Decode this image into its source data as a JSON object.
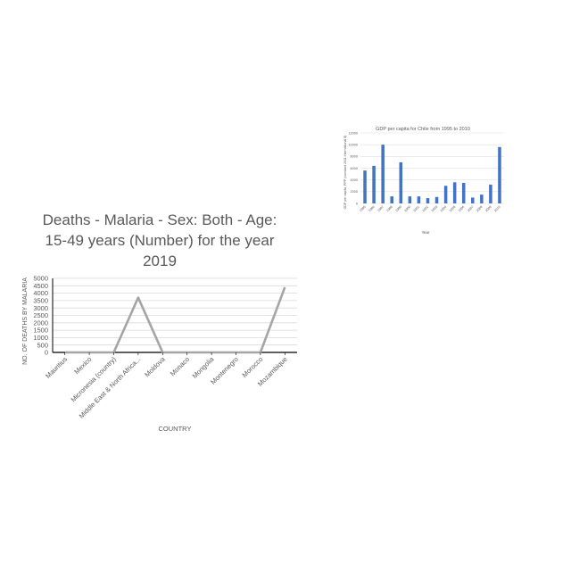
{
  "chart_data": [
    {
      "type": "bar",
      "title": "GDP per capita for Chile from 1995 to 2010",
      "xlabel": "Year",
      "ylabel": "GDP per capita, PPP (constant 2011 international $)",
      "categories": [
        "1995",
        "1996",
        "1997",
        "1998",
        "1999",
        "2000",
        "2001",
        "2002",
        "2003",
        "2004",
        "2005",
        "2006",
        "2007",
        "2008",
        "2009",
        "2010"
      ],
      "values": [
        5600,
        6400,
        10000,
        1200,
        7000,
        1200,
        1200,
        900,
        1100,
        3000,
        3600,
        3500,
        1000,
        1500,
        3200,
        9600
      ],
      "ylim": [
        0,
        12000
      ],
      "yticks": [
        "0",
        "2000",
        "4000",
        "6000",
        "8000",
        "10000",
        "12000"
      ],
      "grid": true,
      "bar_color": "#4472c4"
    },
    {
      "type": "line",
      "title": "Deaths - Malaria - Sex: Both - Age: 15-49 years (Number) for the year 2019",
      "title_lines": [
        "Deaths - Malaria - Sex: Both - Age:",
        "15-49 years (Number) for the year",
        "2019"
      ],
      "xlabel": "COUNTRY",
      "ylabel": "NO. OF DEATHS BY MALARIA",
      "categories": [
        "Mauritius",
        "Mexico",
        "Micronesia (country)",
        "Middle East & North Africa...",
        "Moldova",
        "Monaco",
        "Mongolia",
        "Montenegro",
        "Morocco",
        "Mozambique"
      ],
      "values": [
        0,
        0,
        0,
        3700,
        0,
        0,
        0,
        0,
        0,
        4400
      ],
      "ylim": [
        0,
        5000
      ],
      "yticks": [
        "0",
        "500",
        "1000",
        "1500",
        "2000",
        "2500",
        "3000",
        "3500",
        "4000",
        "4500",
        "5000"
      ],
      "grid": true,
      "line_color": "#a5a5a5"
    }
  ]
}
